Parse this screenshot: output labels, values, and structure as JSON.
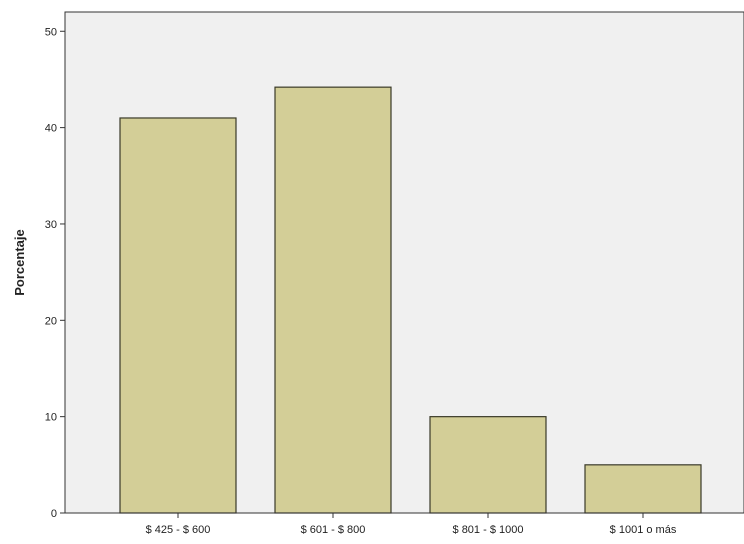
{
  "chart_data": {
    "type": "bar",
    "title": "",
    "xlabel": "",
    "ylabel": "Porcentaje",
    "categories": [
      "$ 425 - $ 600",
      "$ 601 - $ 800",
      "$ 801 - $ 1000",
      "$ 1001 o más"
    ],
    "values": [
      41,
      44.2,
      10,
      5
    ],
    "ylim": [
      0,
      52
    ],
    "yticks": [
      0,
      10,
      20,
      30,
      40,
      50
    ],
    "grid": false,
    "legend": "none",
    "colors": {
      "bar_fill": "#d3ce97",
      "bar_stroke": "#3a3a28",
      "plot_background": "#f0f0f0",
      "axis": "#333333"
    }
  }
}
